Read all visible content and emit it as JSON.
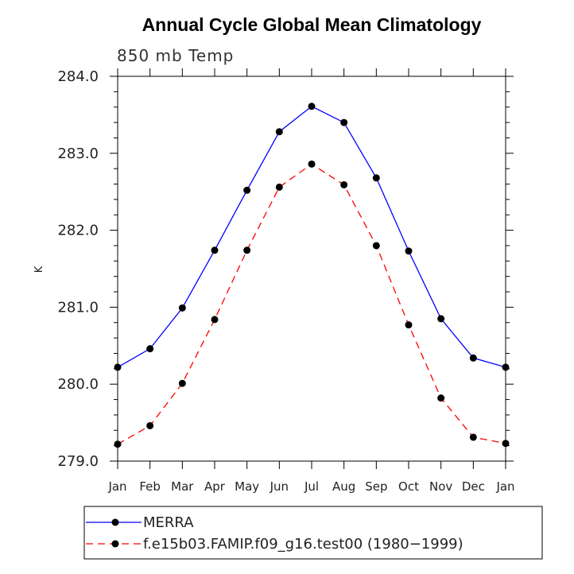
{
  "chart_data": {
    "type": "line",
    "title": "Annual Cycle Global Mean Climatology",
    "subtitle": "850 mb Temp",
    "xlabel": "",
    "ylabel": "K",
    "categories": [
      "Jan",
      "Feb",
      "Mar",
      "Apr",
      "May",
      "Jun",
      "Jul",
      "Aug",
      "Sep",
      "Oct",
      "Nov",
      "Dec",
      "Jan"
    ],
    "yticks": [
      "279.0",
      "280.0",
      "281.0",
      "282.0",
      "283.0",
      "284.0"
    ],
    "ylim": [
      279.0,
      284.0
    ],
    "grid": false,
    "legend_position": "bottom",
    "series": [
      {
        "name": "MERRA",
        "color": "#0000ff",
        "dash": "solid",
        "marker": "dot",
        "values": [
          280.22,
          280.46,
          280.99,
          281.74,
          282.52,
          283.28,
          283.61,
          283.4,
          282.68,
          281.73,
          280.85,
          280.34,
          280.22
        ]
      },
      {
        "name": "f.e15b03.FAMIP.f09_g16.test00 (1980−1999)",
        "color": "#ff0000",
        "dash": "dashed",
        "marker": "dot",
        "values": [
          279.22,
          279.46,
          280.01,
          280.84,
          281.74,
          282.56,
          282.86,
          282.59,
          281.8,
          280.77,
          279.82,
          279.31,
          279.23
        ]
      }
    ]
  }
}
